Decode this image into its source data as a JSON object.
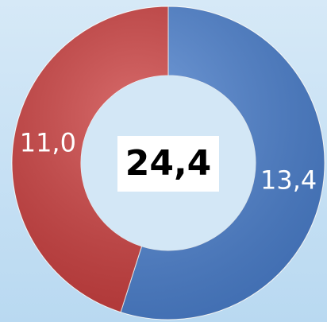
{
  "chart_data": {
    "type": "donut",
    "values": [
      13.4,
      11.0
    ],
    "value_labels": [
      "13,4",
      "11,0"
    ],
    "colors": [
      "#4a80d0",
      "#cc3c3c"
    ],
    "center_text": "24,4"
  }
}
